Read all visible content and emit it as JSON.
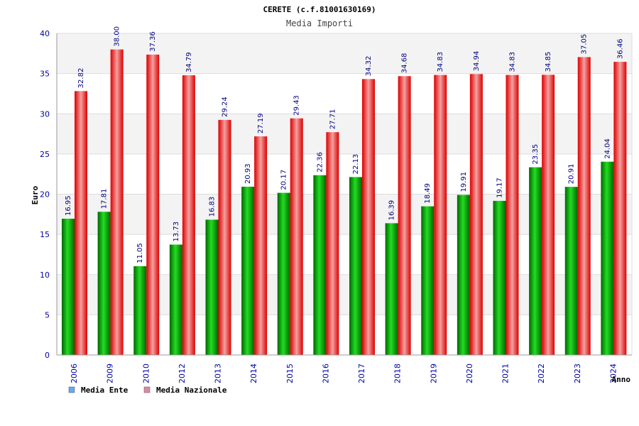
{
  "chart_data": {
    "type": "bar",
    "title": "CERETE (c.f.81001630169)",
    "subtitle": "Media Importi",
    "ylabel": "Euro",
    "xlabel": "Anno",
    "ylim": [
      0,
      40
    ],
    "yticks": [
      0,
      5,
      10,
      15,
      20,
      25,
      30,
      35,
      40
    ],
    "grid": true,
    "legend_position": "bottom-left",
    "categories": [
      "2006",
      "2009",
      "2010",
      "2012",
      "2013",
      "2014",
      "2015",
      "2016",
      "2017",
      "2018",
      "2019",
      "2020",
      "2021",
      "2022",
      "2023",
      "2024"
    ],
    "series": [
      {
        "name": "Media Ente",
        "color": "#00aa00",
        "legend_color": "#66aaee",
        "values": [
          16.95,
          17.81,
          11.05,
          13.73,
          16.83,
          20.93,
          20.17,
          22.36,
          22.13,
          16.39,
          18.49,
          19.91,
          19.17,
          23.35,
          20.91,
          24.04
        ],
        "labels": [
          "16.95",
          "17.81",
          "11.05",
          "13.73",
          "16.83",
          "20.93",
          "20.17",
          "22.36",
          "22.13",
          "16.39",
          "18.49",
          "19.91",
          "19.17",
          "23.35",
          "20.91",
          "24.04"
        ]
      },
      {
        "name": "Media Nazionale",
        "color": "#ee0000",
        "legend_color": "#dd88aa",
        "values": [
          32.82,
          38.0,
          37.36,
          34.79,
          29.24,
          27.19,
          29.43,
          27.71,
          34.32,
          34.68,
          34.83,
          34.94,
          34.83,
          34.85,
          37.05,
          36.46
        ],
        "labels": [
          "32.82",
          "38.00",
          "37.36",
          "34.79",
          "29.24",
          "27.19",
          "29.43",
          "27.71",
          "34.32",
          "34.68",
          "34.83",
          "34.94",
          "34.83",
          "34.85",
          "37.05",
          "36.46"
        ]
      }
    ]
  }
}
